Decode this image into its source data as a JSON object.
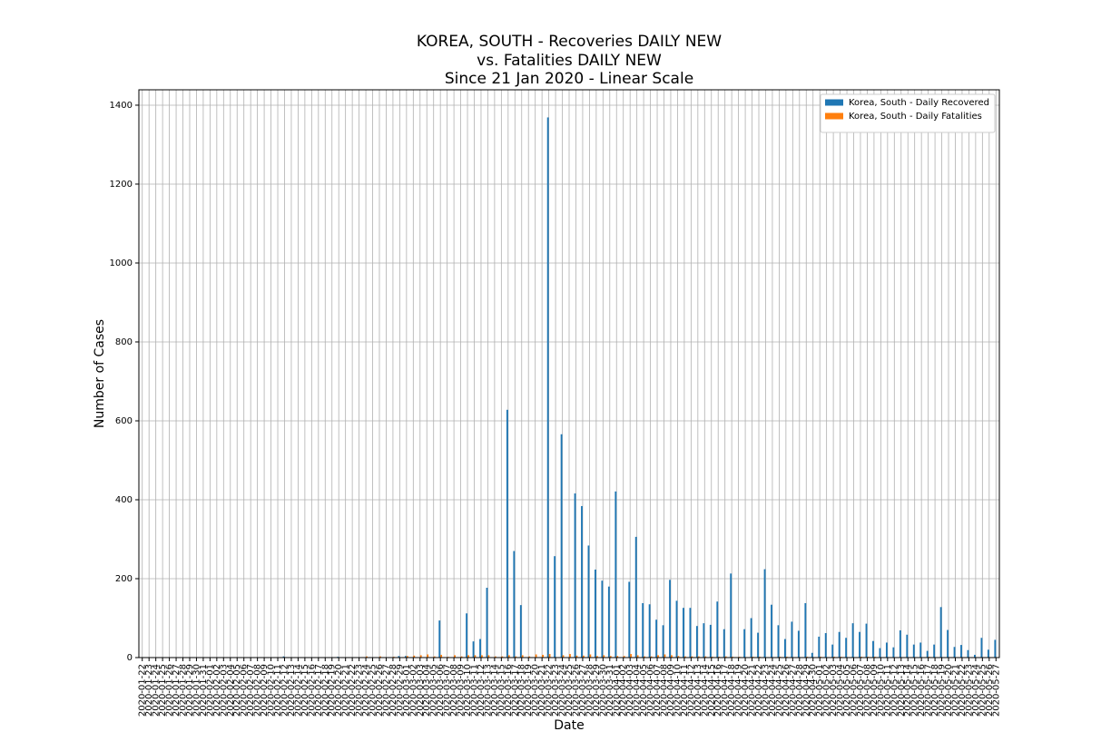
{
  "chart_data": {
    "type": "bar",
    "title": [
      "KOREA, SOUTH - Recoveries DAILY NEW",
      "vs. Fatalities DAILY NEW",
      "Since 21 Jan 2020 - Linear Scale"
    ],
    "xlabel": "Date",
    "ylabel": "Number of Cases",
    "categories": [
      "2020-01-22",
      "2020-01-23",
      "2020-01-24",
      "2020-01-25",
      "2020-01-26",
      "2020-01-27",
      "2020-01-28",
      "2020-01-29",
      "2020-01-30",
      "2020-01-31",
      "2020-02-01",
      "2020-02-02",
      "2020-02-03",
      "2020-02-04",
      "2020-02-05",
      "2020-02-06",
      "2020-02-07",
      "2020-02-08",
      "2020-02-09",
      "2020-02-10",
      "2020-02-11",
      "2020-02-12",
      "2020-02-13",
      "2020-02-14",
      "2020-02-15",
      "2020-02-16",
      "2020-02-17",
      "2020-02-18",
      "2020-02-19",
      "2020-02-20",
      "2020-02-21",
      "2020-02-22",
      "2020-02-23",
      "2020-02-24",
      "2020-02-25",
      "2020-02-26",
      "2020-02-27",
      "2020-02-28",
      "2020-02-29",
      "2020-03-01",
      "2020-03-02",
      "2020-03-03",
      "2020-03-04",
      "2020-03-05",
      "2020-03-06",
      "2020-03-07",
      "2020-03-08",
      "2020-03-09",
      "2020-03-10",
      "2020-03-11",
      "2020-03-12",
      "2020-03-13",
      "2020-03-14",
      "2020-03-15",
      "2020-03-16",
      "2020-03-17",
      "2020-03-18",
      "2020-03-19",
      "2020-03-20",
      "2020-03-21",
      "2020-03-22",
      "2020-03-23",
      "2020-03-24",
      "2020-03-25",
      "2020-03-26",
      "2020-03-27",
      "2020-03-28",
      "2020-03-29",
      "2020-03-30",
      "2020-03-31",
      "2020-04-01",
      "2020-04-02",
      "2020-04-03",
      "2020-04-04",
      "2020-04-05",
      "2020-04-06",
      "2020-04-07",
      "2020-04-08",
      "2020-04-09",
      "2020-04-10",
      "2020-04-11",
      "2020-04-12",
      "2020-04-13",
      "2020-04-14",
      "2020-04-15",
      "2020-04-16",
      "2020-04-17",
      "2020-04-18",
      "2020-04-19",
      "2020-04-20",
      "2020-04-21",
      "2020-04-22",
      "2020-04-23",
      "2020-04-24",
      "2020-04-25",
      "2020-04-26",
      "2020-04-27",
      "2020-04-28",
      "2020-04-29",
      "2020-04-30",
      "2020-05-01",
      "2020-05-02",
      "2020-05-03",
      "2020-05-04",
      "2020-05-05",
      "2020-05-06",
      "2020-05-07",
      "2020-05-08",
      "2020-05-09",
      "2020-05-10",
      "2020-05-11",
      "2020-05-12",
      "2020-05-13",
      "2020-05-14",
      "2020-05-15",
      "2020-05-16",
      "2020-05-17",
      "2020-05-18",
      "2020-05-19",
      "2020-05-20",
      "2020-05-21",
      "2020-05-22",
      "2020-05-23",
      "2020-05-24",
      "2020-05-25",
      "2020-05-26",
      "2020-05-27"
    ],
    "series": [
      {
        "name": "Korea, South - Daily Recovered",
        "color": "#1f77b4",
        "values": [
          0,
          0,
          0,
          0,
          0,
          0,
          0,
          0,
          0,
          0,
          0,
          0,
          0,
          0,
          0,
          0,
          1,
          0,
          1,
          0,
          0,
          3,
          0,
          0,
          0,
          0,
          0,
          0,
          1,
          2,
          0,
          1,
          0,
          1,
          1,
          0,
          0,
          0,
          4,
          4,
          0,
          0,
          0,
          0,
          94,
          0,
          0,
          0,
          112,
          41,
          47,
          177,
          0,
          0,
          628,
          270,
          133,
          0,
          0,
          0,
          1369,
          257,
          566,
          0,
          416,
          384,
          284,
          223,
          195,
          180,
          421,
          0,
          192,
          306,
          138,
          135,
          96,
          82,
          197,
          144,
          126,
          126,
          80,
          87,
          83,
          142,
          72,
          213,
          0,
          72,
          100,
          63,
          224,
          134,
          82,
          47,
          91,
          68,
          138,
          12,
          53,
          62,
          33,
          65,
          50,
          87,
          65,
          86,
          42,
          24,
          38,
          26,
          69,
          58,
          33,
          38,
          17,
          33,
          128,
          70,
          27,
          32,
          19,
          7,
          50,
          20,
          45
        ]
      },
      {
        "name": "Korea, South - Daily Fatalities",
        "color": "#ff7f0e",
        "values": [
          0,
          0,
          0,
          0,
          0,
          0,
          0,
          0,
          0,
          0,
          0,
          0,
          0,
          0,
          0,
          0,
          0,
          0,
          0,
          0,
          0,
          0,
          0,
          0,
          0,
          0,
          0,
          0,
          0,
          1,
          1,
          0,
          0,
          3,
          1,
          3,
          1,
          2,
          1,
          4,
          5,
          6,
          8,
          3,
          7,
          2,
          6,
          3,
          6,
          6,
          6,
          6,
          3,
          3,
          6,
          3,
          6,
          3,
          8,
          7,
          9,
          1,
          6,
          9,
          5,
          5,
          8,
          4,
          6,
          4,
          4,
          4,
          9,
          6,
          3,
          3,
          6,
          8,
          6,
          4,
          3,
          3,
          3,
          3,
          2,
          2,
          3,
          2,
          2,
          1,
          2,
          2,
          1,
          0,
          2,
          2,
          1,
          1,
          2,
          0,
          2,
          0,
          2,
          2,
          0,
          1,
          2,
          2,
          2,
          1,
          0,
          0,
          1,
          0,
          0,
          1,
          2,
          1,
          0,
          0,
          1,
          0,
          0,
          1,
          0,
          0,
          0
        ]
      }
    ],
    "ylim": [
      0,
      1439
    ],
    "yticks": [
      0,
      200,
      400,
      600,
      800,
      1000,
      1200,
      1400
    ],
    "grid": true,
    "legend": "upper right"
  }
}
